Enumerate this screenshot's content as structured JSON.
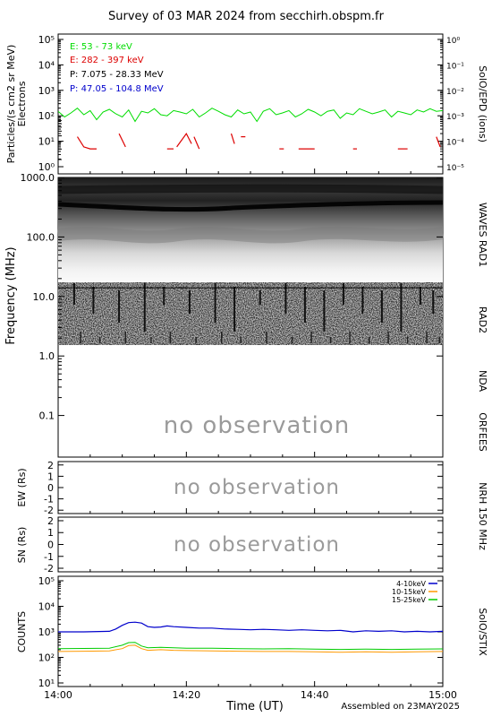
{
  "title": "Survey of 03 MAR 2024 from secchirh.obspm.fr",
  "footer": {
    "xlabel": "Time (UT)",
    "assembled": "Assembled on 23MAY2025"
  },
  "time_ticks": [
    "14:00",
    "14:20",
    "14:40",
    "15:00"
  ],
  "no_observation": "no observation",
  "colors": {
    "green": "#00dd00",
    "red": "#dd0000",
    "black": "#000000",
    "blue": "#0000cc",
    "orange": "#ff9900",
    "blue_stix": "#0000cc",
    "green_stix": "#00cc00"
  },
  "chart_data": [
    {
      "type": "line",
      "panel": "particles",
      "ylabel": "Particles/(s cm2 sr MeV)",
      "ylabel2": "Electrons",
      "right_label": "SolO/EPD  (ions)",
      "yscale": "log",
      "ylim": [
        1,
        100000
      ],
      "left_ticks": [
        "10⁰",
        "10¹",
        "10²",
        "10³",
        "10⁴",
        "10⁵"
      ],
      "right_ticks": [
        "10⁻⁵",
        "10⁻⁴",
        "10⁻³",
        "10⁻²",
        "10⁻¹",
        "10⁰"
      ],
      "legend": [
        {
          "label": "E: 53 - 73 keV",
          "color": "#00dd00"
        },
        {
          "label": "E: 282 - 397 keV",
          "color": "#dd0000"
        },
        {
          "label": "P: 7.075 - 28.33 MeV",
          "color": "#000000"
        },
        {
          "label": "P: 47.05 - 104.8 MeV",
          "color": "#0000cc"
        }
      ],
      "xlim_minutes": [
        0,
        60
      ],
      "series": [
        {
          "name": "E: 53 - 73 keV",
          "color": "#00dd00",
          "x": [
            0,
            1,
            2,
            3,
            4,
            5,
            6,
            7,
            8,
            9,
            10,
            11,
            12,
            13,
            14,
            15,
            16,
            17,
            18,
            19,
            20,
            21,
            22,
            23,
            24,
            25,
            26,
            27,
            28,
            29,
            30,
            31,
            32,
            33,
            34,
            35,
            36,
            37,
            38,
            39,
            40,
            41,
            42,
            43,
            44,
            45,
            46,
            47,
            48,
            49,
            50,
            51,
            52,
            53,
            54,
            55,
            56,
            57,
            58,
            59,
            60
          ],
          "y": [
            150,
            90,
            130,
            200,
            110,
            160,
            70,
            140,
            180,
            120,
            90,
            170,
            60,
            150,
            130,
            190,
            110,
            100,
            160,
            140,
            120,
            180,
            90,
            130,
            200,
            150,
            110,
            90,
            170,
            120,
            140,
            60,
            150,
            190,
            110,
            130,
            160,
            90,
            120,
            180,
            140,
            100,
            150,
            170,
            80,
            130,
            110,
            190,
            150,
            120,
            140,
            170,
            90,
            150,
            130,
            110,
            170,
            140,
            190,
            150,
            160
          ]
        },
        {
          "name": "E: 282 - 397 keV",
          "color": "#dd0000",
          "segments": [
            {
              "x": [
                3,
                4,
                5,
                6
              ],
              "y": [
                15,
                6,
                5,
                5
              ]
            },
            {
              "x": [
                9.5,
                10.5
              ],
              "y": [
                20,
                6
              ]
            },
            {
              "x": [
                17,
                18
              ],
              "y": [
                5,
                5
              ]
            },
            {
              "x": [
                18.5,
                20,
                20.8
              ],
              "y": [
                6,
                20,
                8
              ]
            },
            {
              "x": [
                21.2,
                22
              ],
              "y": [
                15,
                5
              ]
            },
            {
              "x": [
                27,
                27.5
              ],
              "y": [
                20,
                8
              ]
            },
            {
              "x": [
                28.5,
                29.2
              ],
              "y": [
                15,
                15
              ]
            },
            {
              "x": [
                34.5,
                35.2
              ],
              "y": [
                5,
                5
              ]
            },
            {
              "x": [
                37.5,
                40
              ],
              "y": [
                5,
                5
              ]
            },
            {
              "x": [
                46,
                46.6
              ],
              "y": [
                5,
                5
              ]
            },
            {
              "x": [
                53,
                54.5
              ],
              "y": [
                5,
                5
              ]
            },
            {
              "x": [
                59,
                59.6
              ],
              "y": [
                15,
                6
              ]
            }
          ]
        }
      ]
    },
    {
      "type": "heatmap",
      "panel": "radio-spectrum",
      "ylabel": "Frequency (MHz)",
      "yscale": "log",
      "ylim": [
        0.02,
        1000
      ],
      "y_ticks": [
        "0.1",
        "1.0",
        "10.0",
        "100.0",
        "1000.0"
      ],
      "right_labels": [
        "WAVES RAD1",
        "RAD2",
        "NDA",
        "ORFEES"
      ],
      "bands": [
        {
          "name": "RAD1",
          "range_mhz": [
            0.02,
            1.0
          ],
          "observed": true
        },
        {
          "name": "RAD2",
          "range_mhz": [
            1.0,
            14
          ],
          "observed": true
        },
        {
          "name": "NDA",
          "range_mhz": [
            14,
            100
          ],
          "observed": false
        },
        {
          "name": "ORFEES",
          "range_mhz": [
            100,
            1000
          ],
          "observed": false
        }
      ],
      "annotation": "no observation"
    },
    {
      "type": "line",
      "panel": "nrh-ew",
      "ylabel": "EW (Rs)",
      "y_ticks": [
        "2",
        "1",
        "0",
        "-1",
        "-2"
      ],
      "ylim": [
        -2.3,
        2.3
      ],
      "annotation": "no observation"
    },
    {
      "type": "line",
      "panel": "nrh-sn",
      "ylabel": "SN (Rs)",
      "y_ticks": [
        "2",
        "1",
        "0",
        "-1",
        "-2"
      ],
      "ylim": [
        -2.3,
        2.3
      ],
      "right_label": "NRH 150 MHz",
      "annotation": "no observation"
    },
    {
      "type": "line",
      "panel": "stix",
      "ylabel": "COUNTS",
      "right_label": "SolO/STIX",
      "yscale": "log",
      "ylim": [
        10,
        100000
      ],
      "y_ticks": [
        "10¹",
        "10²",
        "10³",
        "10⁴",
        "10⁵"
      ],
      "legend": [
        {
          "label": "4-10keV",
          "color": "#0000cc"
        },
        {
          "label": "10-15keV",
          "color": "#ff9900"
        },
        {
          "label": "15-25keV",
          "color": "#00cc00"
        }
      ],
      "xlim_minutes": [
        0,
        60
      ],
      "series": [
        {
          "name": "4-10keV",
          "color": "#0000cc",
          "x": [
            0,
            4,
            8,
            9,
            10,
            11,
            12,
            13,
            14,
            15,
            16,
            17,
            18,
            20,
            22,
            24,
            26,
            28,
            30,
            32,
            34,
            36,
            38,
            40,
            42,
            44,
            46,
            48,
            50,
            52,
            54,
            56,
            58,
            60
          ],
          "y": [
            1000,
            1000,
            1050,
            1300,
            1800,
            2300,
            2400,
            2200,
            1600,
            1500,
            1550,
            1700,
            1600,
            1500,
            1400,
            1400,
            1300,
            1250,
            1200,
            1250,
            1200,
            1150,
            1200,
            1150,
            1100,
            1150,
            1000,
            1100,
            1050,
            1100,
            1000,
            1050,
            1000,
            1050
          ]
        },
        {
          "name": "10-15keV",
          "color": "#ff9900",
          "x": [
            0,
            4,
            8,
            10,
            11,
            12,
            13,
            14,
            16,
            18,
            20,
            24,
            28,
            32,
            36,
            40,
            44,
            48,
            52,
            56,
            60
          ],
          "y": [
            170,
            175,
            180,
            220,
            290,
            300,
            220,
            190,
            200,
            190,
            185,
            180,
            175,
            170,
            170,
            165,
            160,
            165,
            160,
            165,
            170
          ]
        },
        {
          "name": "15-25keV",
          "color": "#00cc00",
          "x": [
            0,
            4,
            8,
            10,
            11,
            12,
            13,
            14,
            16,
            18,
            20,
            24,
            28,
            32,
            36,
            40,
            44,
            48,
            52,
            56,
            60
          ],
          "y": [
            220,
            225,
            230,
            300,
            380,
            390,
            280,
            240,
            250,
            240,
            230,
            230,
            220,
            215,
            220,
            210,
            205,
            210,
            205,
            210,
            215
          ]
        }
      ]
    }
  ]
}
